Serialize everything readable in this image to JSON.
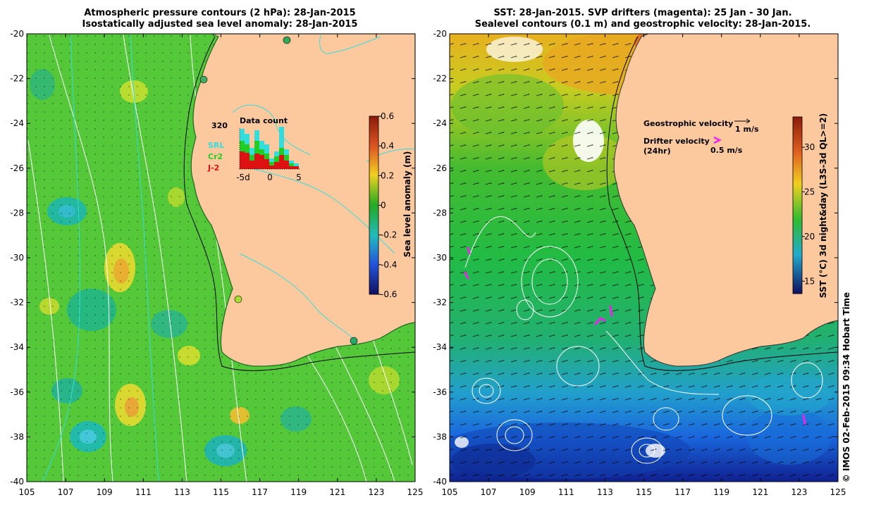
{
  "left_panel": {
    "title_line1": "Atmospheric pressure contours (2 hPa): 28-Jan-2015",
    "title_line2": "Isostatically adjusted sea level anomaly: 28-Jan-2015",
    "y_ticks": [
      "-20",
      "-22",
      "-24",
      "-26",
      "-28",
      "-30",
      "-32",
      "-34",
      "-36",
      "-38",
      "-40"
    ],
    "x_ticks": [
      "105",
      "107",
      "109",
      "111",
      "113",
      "115",
      "117",
      "119",
      "121",
      "123",
      "125"
    ],
    "colorbar": {
      "label": "Sea level anomaly (m)",
      "ticks": [
        "0.6",
        "0.4",
        "0.2",
        "0",
        "-0.2",
        "-0.4",
        "-0.6"
      ]
    },
    "inset": {
      "title": "Data count",
      "max_label": "320",
      "x_ticks": [
        "-5d",
        "0",
        "5"
      ],
      "legend": [
        {
          "label": "SRL",
          "color": "#33dddd"
        },
        {
          "label": "Cr2",
          "color": "#22cc22"
        },
        {
          "label": "J-2",
          "color": "#dd1111"
        }
      ]
    }
  },
  "right_panel": {
    "title_line1": "SST: 28-Jan-2015. SVP drifters (magenta): 25 Jan - 30 Jan.",
    "title_line2": "Sealevel contours (0.1 m) and geostrophic velocity: 28-Jan-2015.",
    "y_ticks": [
      "-20",
      "-22",
      "-24",
      "-26",
      "-28",
      "-30",
      "-32",
      "-34",
      "-36",
      "-38",
      "-40"
    ],
    "x_ticks": [
      "105",
      "107",
      "109",
      "111",
      "113",
      "115",
      "117",
      "119",
      "121",
      "123",
      "125"
    ],
    "colorbar": {
      "label": "SST (°C) 3d night&day (L3S-3d QL>=2)",
      "ticks": [
        "30",
        "25",
        "20",
        "15"
      ]
    },
    "legend": {
      "geostrophic": "Geostrophic velocity",
      "geostrophic_scale": "1 m/s",
      "drifter_line1": "Drifter velocity",
      "drifter_line2": "(24hr)",
      "drifter_scale": "0.5 m/s",
      "drifter_color": "#ee22ee"
    }
  },
  "credit": "© IMOS 02-Feb-2015 09:34 Hobart Time",
  "colors": {
    "land": "#fcc99f",
    "background": "#ffffff"
  }
}
